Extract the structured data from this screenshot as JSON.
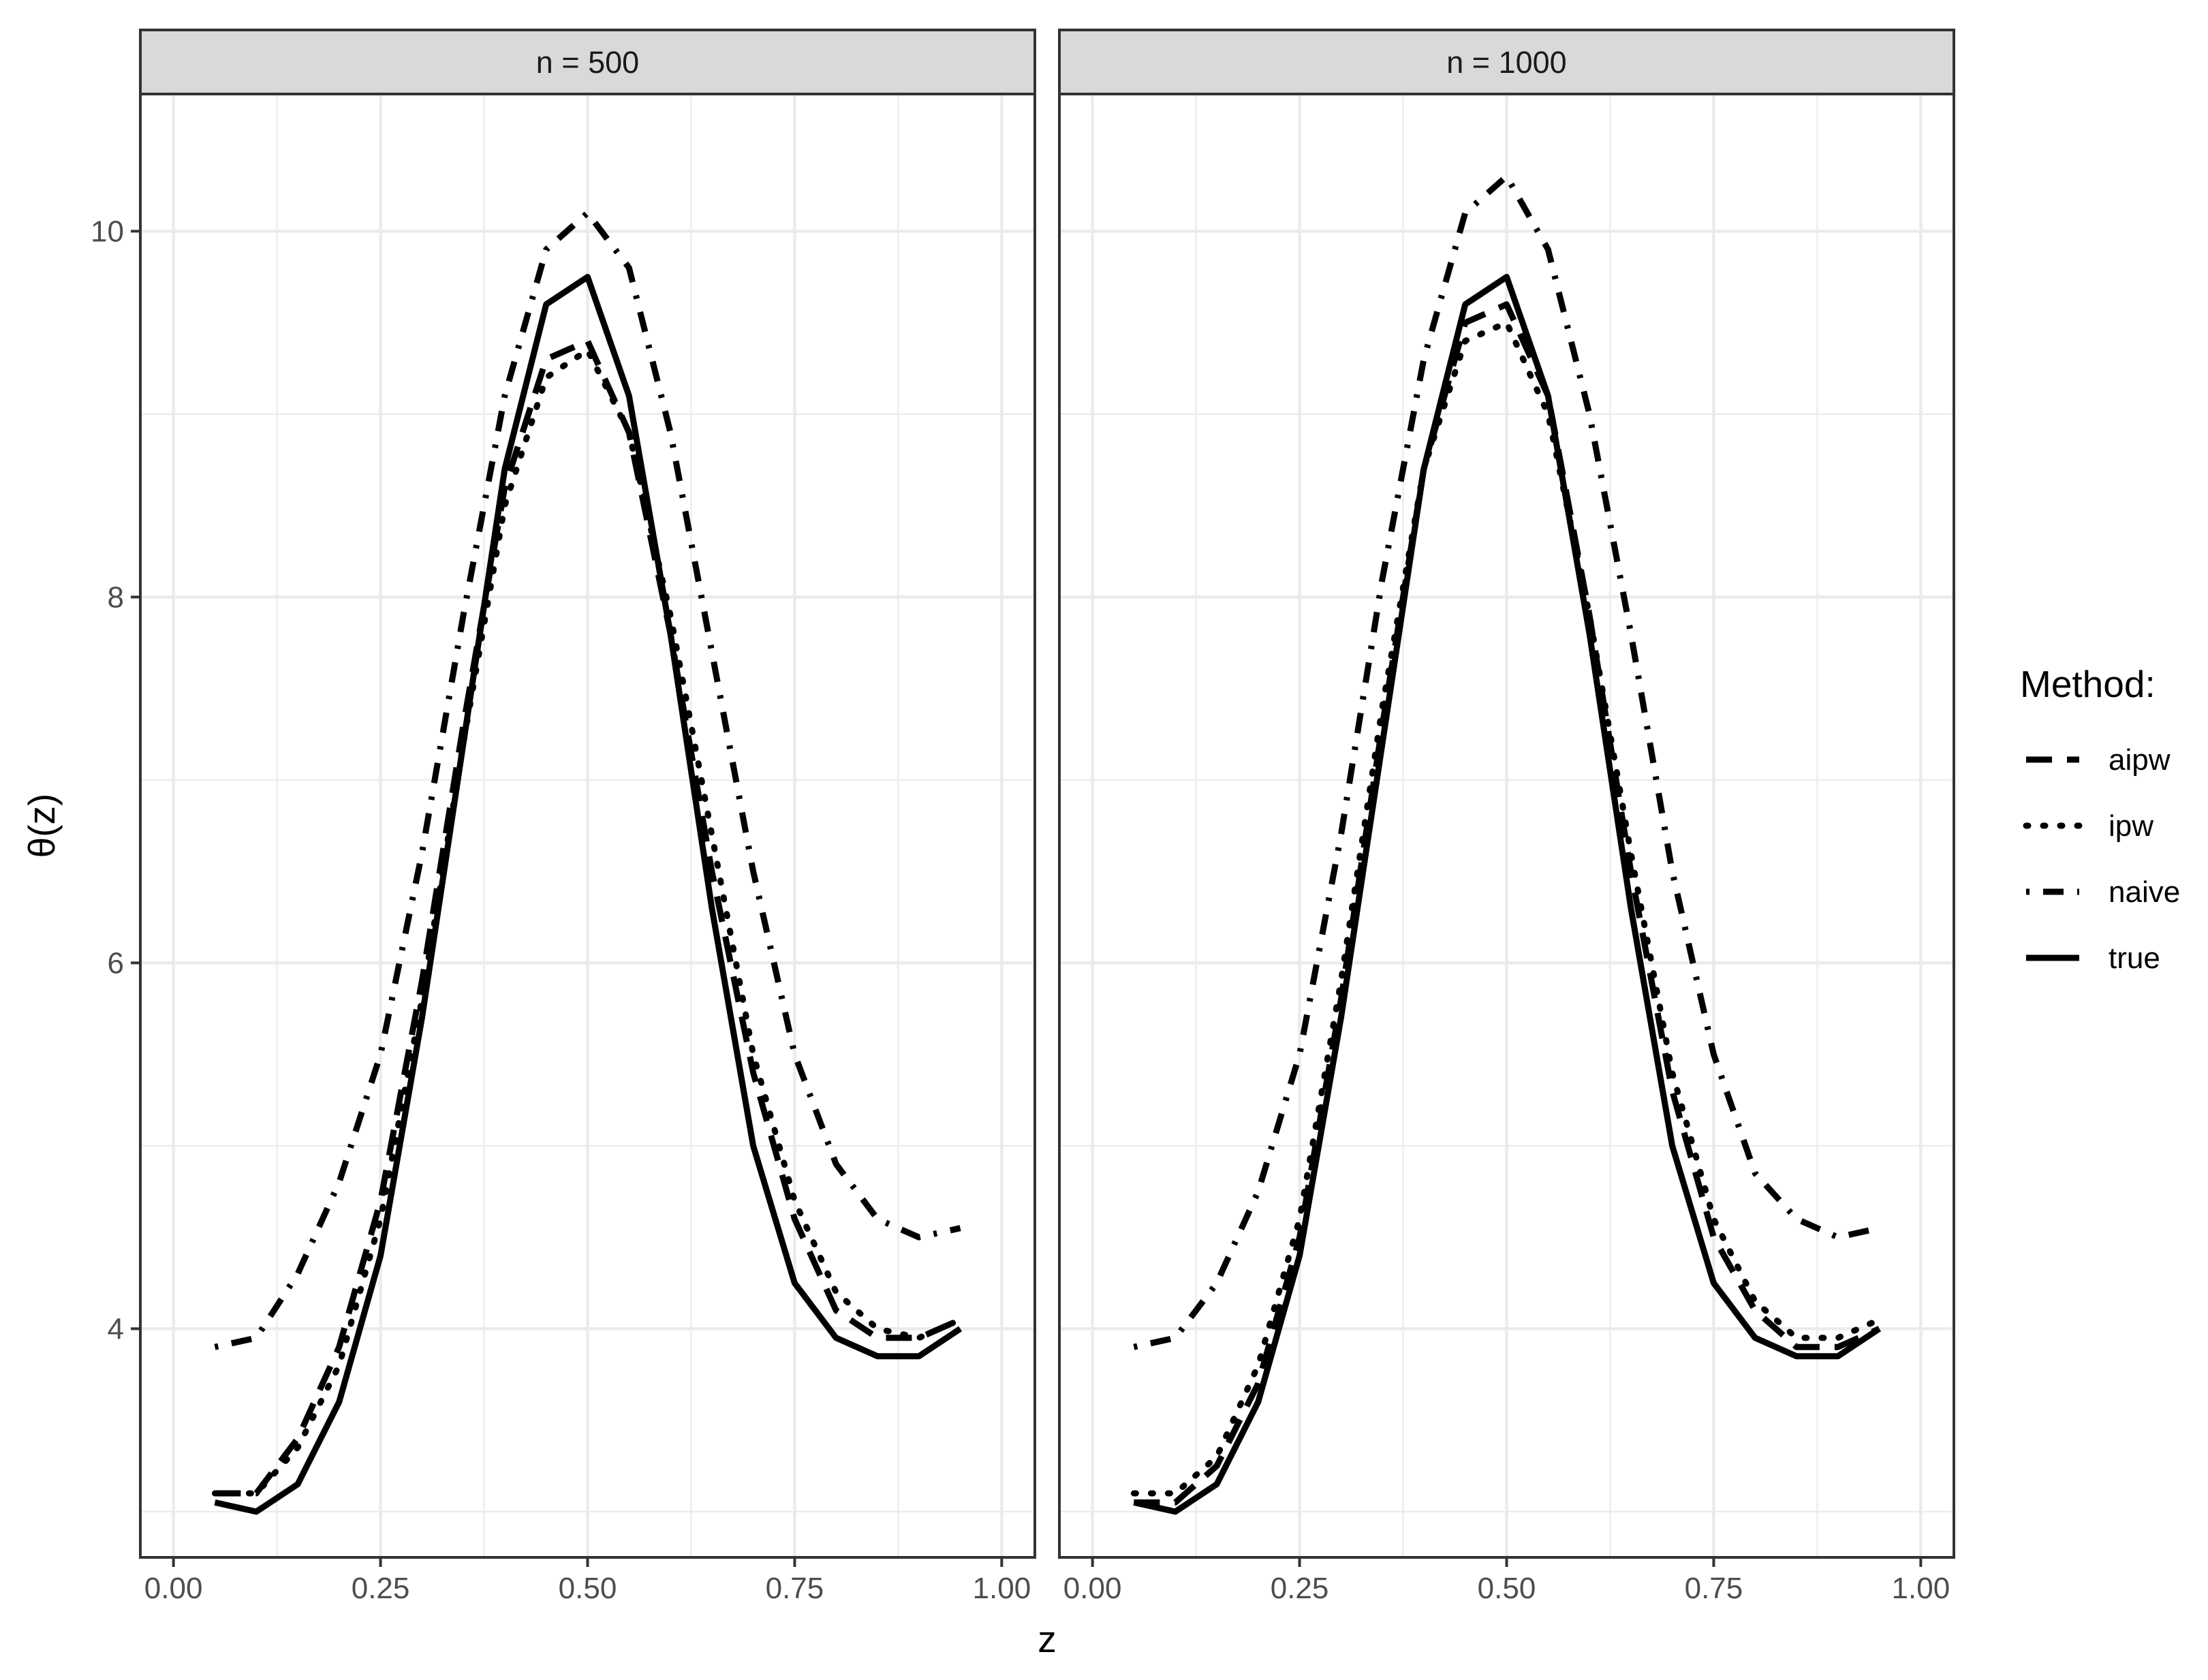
{
  "chart_data": {
    "type": "line",
    "xlabel": "z",
    "ylabel": "θ(z)",
    "xlim": [
      -0.04,
      1.04
    ],
    "ylim": [
      2.75,
      10.75
    ],
    "x_ticks": [
      0.0,
      0.25,
      0.5,
      0.75,
      1.0
    ],
    "x_tick_labels": [
      "0.00",
      "0.25",
      "0.50",
      "0.75",
      "1.00"
    ],
    "y_ticks": [
      4,
      6,
      8,
      10
    ],
    "y_tick_labels": [
      "4",
      "6",
      "8",
      "10"
    ],
    "grid": true,
    "legend": {
      "title": "Method:",
      "position": "right",
      "entries": [
        "aipw",
        "ipw",
        "naive",
        "true"
      ]
    },
    "line_styles": {
      "aipw": "long-dash",
      "ipw": "dotted",
      "naive": "dot-dash",
      "true": "solid"
    },
    "panels": [
      {
        "label": "n = 500",
        "x": [
          0.05,
          0.1,
          0.15,
          0.2,
          0.25,
          0.3,
          0.35,
          0.4,
          0.45,
          0.5,
          0.55,
          0.6,
          0.65,
          0.7,
          0.75,
          0.8,
          0.85,
          0.9,
          0.95
        ],
        "series": [
          {
            "name": "aipw",
            "values": [
              3.1,
              3.1,
              3.4,
              3.9,
              4.7,
              5.9,
              7.3,
              8.6,
              9.3,
              9.4,
              8.9,
              7.8,
              6.5,
              5.4,
              4.6,
              4.1,
              3.95,
              3.95,
              4.05
            ]
          },
          {
            "name": "ipw",
            "values": [
              3.1,
              3.1,
              3.35,
              3.8,
              4.6,
              5.8,
              7.2,
              8.5,
              9.2,
              9.35,
              8.9,
              7.9,
              6.7,
              5.5,
              4.7,
              4.2,
              4.0,
              3.95,
              4.05
            ]
          },
          {
            "name": "naive",
            "values": [
              3.9,
              3.95,
              4.3,
              4.8,
              5.5,
              6.6,
              7.9,
              9.1,
              9.9,
              10.1,
              9.8,
              8.9,
              7.7,
              6.5,
              5.5,
              4.9,
              4.6,
              4.5,
              4.55
            ]
          },
          {
            "name": "true",
            "values": [
              3.05,
              3.0,
              3.15,
              3.6,
              4.4,
              5.7,
              7.2,
              8.7,
              9.6,
              9.75,
              9.1,
              7.8,
              6.3,
              5.0,
              4.25,
              3.95,
              3.85,
              3.85,
              4.0
            ]
          }
        ]
      },
      {
        "label": "n = 1000",
        "x": [
          0.05,
          0.1,
          0.15,
          0.2,
          0.25,
          0.3,
          0.35,
          0.4,
          0.45,
          0.5,
          0.55,
          0.6,
          0.65,
          0.7,
          0.75,
          0.8,
          0.85,
          0.9,
          0.95
        ],
        "series": [
          {
            "name": "aipw",
            "values": [
              3.05,
              3.05,
              3.25,
              3.7,
              4.5,
              5.8,
              7.3,
              8.7,
              9.5,
              9.6,
              9.1,
              7.9,
              6.5,
              5.3,
              4.5,
              4.1,
              3.9,
              3.9,
              4.0
            ]
          },
          {
            "name": "ipw",
            "values": [
              3.1,
              3.1,
              3.3,
              3.8,
              4.6,
              5.9,
              7.4,
              8.7,
              9.4,
              9.5,
              9.0,
              7.9,
              6.6,
              5.4,
              4.6,
              4.15,
              3.95,
              3.95,
              4.05
            ]
          },
          {
            "name": "naive",
            "values": [
              3.9,
              3.95,
              4.25,
              4.75,
              5.5,
              6.7,
              8.1,
              9.3,
              10.1,
              10.3,
              9.9,
              9.0,
              7.8,
              6.5,
              5.5,
              4.85,
              4.6,
              4.5,
              4.55
            ]
          },
          {
            "name": "true",
            "values": [
              3.05,
              3.0,
              3.15,
              3.6,
              4.4,
              5.7,
              7.2,
              8.7,
              9.6,
              9.75,
              9.1,
              7.8,
              6.3,
              5.0,
              4.25,
              3.95,
              3.85,
              3.85,
              4.0
            ]
          }
        ]
      }
    ]
  }
}
